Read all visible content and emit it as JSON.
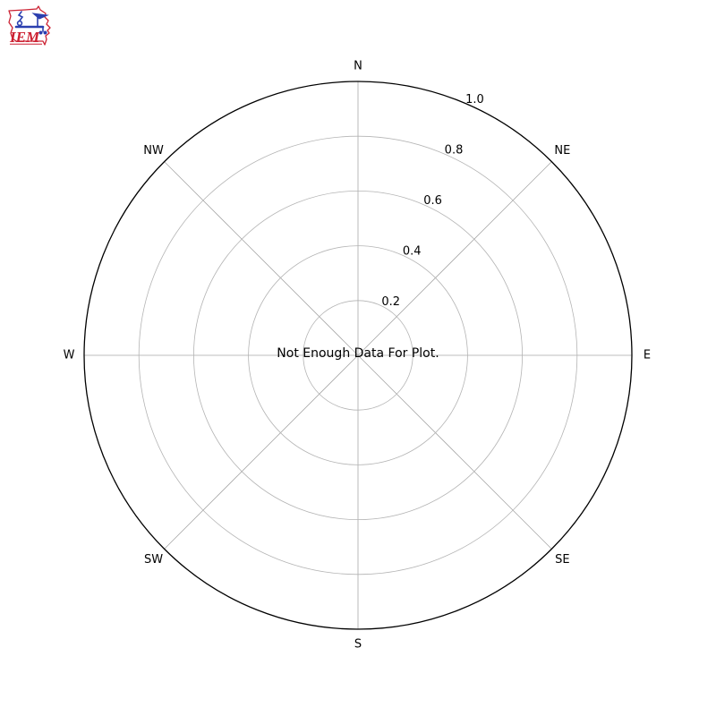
{
  "logo": {
    "text": "IEM",
    "outline_color": "#cc2233",
    "text_color": "#cc2233",
    "instrument_color": "#2b3faf"
  },
  "chart_data": {
    "type": "windrose-polar",
    "title": "",
    "message": "Not Enough Data For Plot.",
    "directions": [
      "N",
      "NE",
      "E",
      "SE",
      "S",
      "SW",
      "W",
      "NW"
    ],
    "direction_angles_deg": [
      0,
      45,
      90,
      135,
      180,
      225,
      270,
      315
    ],
    "r_ticks": [
      0.2,
      0.4,
      0.6,
      0.8,
      1.0
    ],
    "r_tick_labels": [
      "0.2",
      "0.4",
      "0.6",
      "0.8",
      "1.0"
    ],
    "rlim": [
      0,
      1.0
    ],
    "r_label_angle_deg": 22.5,
    "series": [],
    "grid": true,
    "legend": null,
    "colors": {
      "ring_grid": "#b4b4b4",
      "spoke_grid": "#a8a8a8",
      "spine": "#000000",
      "text": "#000000",
      "background": "#ffffff"
    }
  }
}
